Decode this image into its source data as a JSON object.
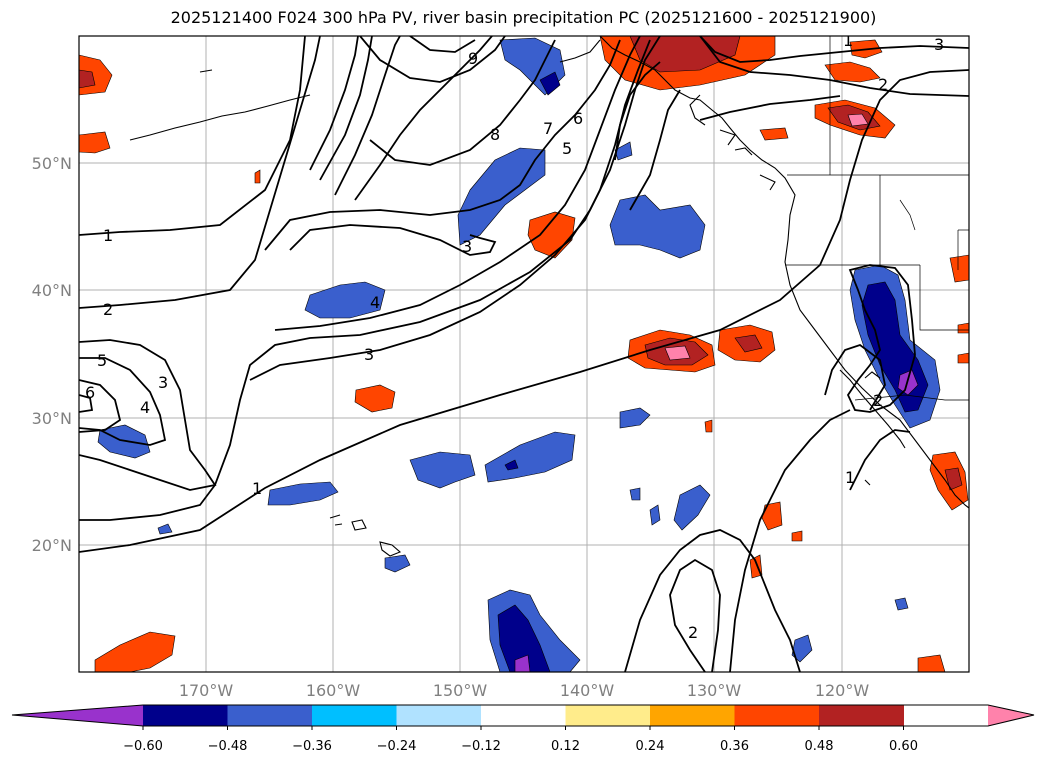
{
  "title": "2025121400 F024 300 hPa PV, river basin precipitation PC (2025121600 - 2025121900)",
  "lat_labels": [
    "50°N",
    "40°N",
    "30°N",
    "20°N"
  ],
  "lon_labels": [
    "170°W",
    "160°W",
    "150°W",
    "140°W",
    "130°W",
    "120°W"
  ],
  "colorbar": {
    "tick_labels": [
      "−0.60",
      "−0.48",
      "−0.36",
      "−0.24",
      "−0.12",
      "0.12",
      "0.24",
      "0.36",
      "0.48",
      "0.60"
    ],
    "colors": [
      "#9932cc",
      "#00008b",
      "#3a5fcd",
      "#00bfff",
      "#b0e2ff",
      "#ffffff",
      "#ffec8b",
      "#ffa500",
      "#ff4500",
      "#b22222",
      "#ff82ab"
    ]
  },
  "contour_labels": [
    "9",
    "8",
    "7",
    "6",
    "5",
    "4",
    "3",
    "3",
    "1",
    "2",
    "5",
    "6",
    "4",
    "3",
    "1",
    "1",
    "2",
    "2",
    "2",
    "1",
    "3"
  ]
}
